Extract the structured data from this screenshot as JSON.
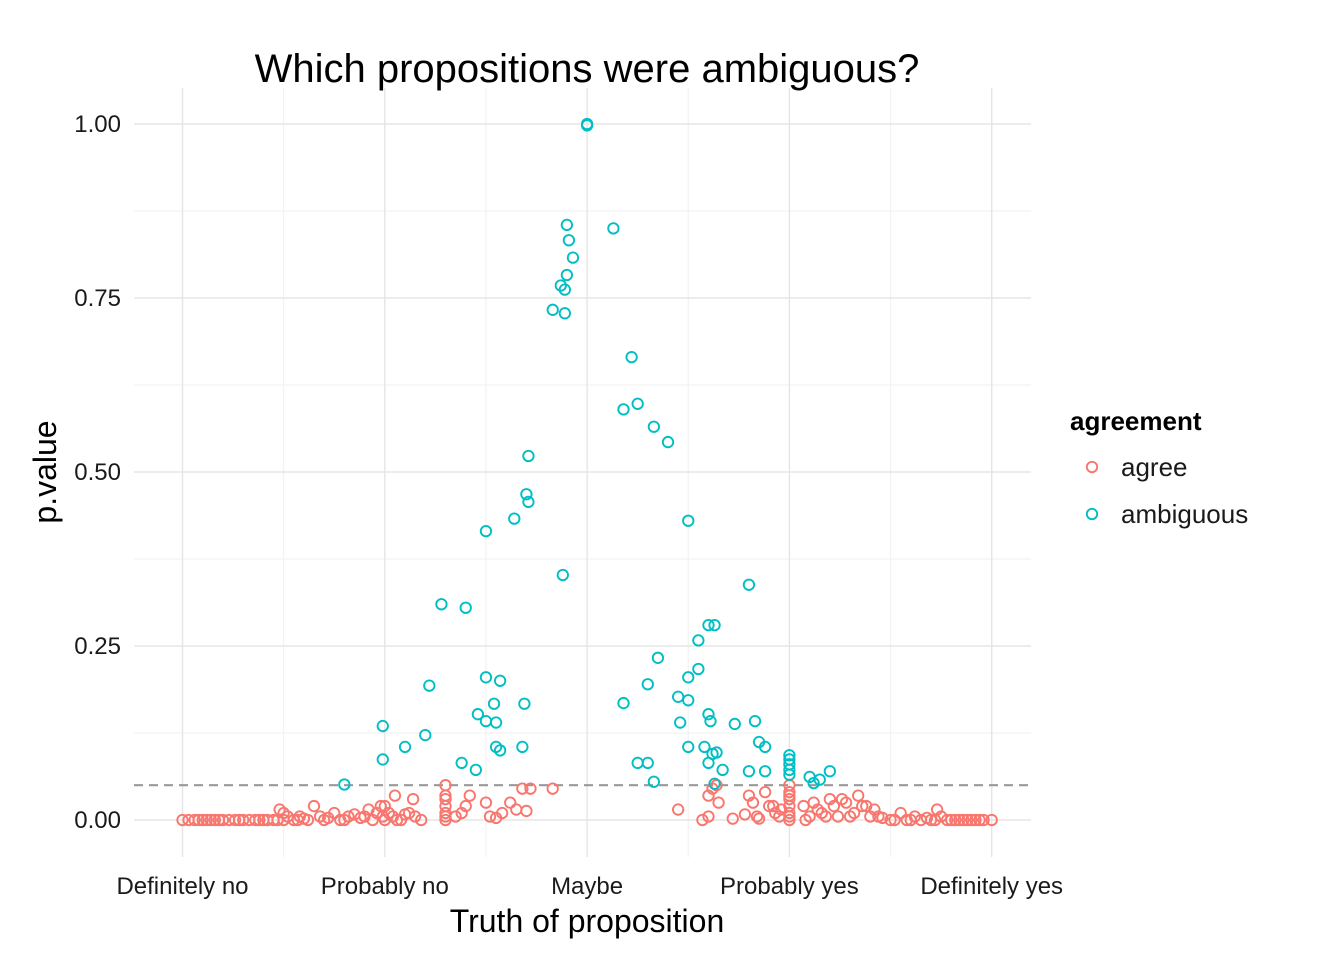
{
  "chart_data": {
    "type": "scatter",
    "title": "Which propositions were ambiguous?",
    "xlabel": "Truth of proposition",
    "ylabel": "p.value",
    "categories": [
      "Definitely no",
      "Probably no",
      "Maybe",
      "Probably yes",
      "Definitely yes"
    ],
    "xlim": [
      0.9,
      5.2
    ],
    "ylim": [
      -0.06,
      1.05
    ],
    "y_ticks": [
      0,
      0.25,
      0.5,
      0.75,
      1.0
    ],
    "y_tick_labels": [
      "0.00",
      "0.25",
      "0.50",
      "0.75",
      "1.00"
    ],
    "reference_line": {
      "y": 0.05,
      "style": "dashed"
    },
    "grid": true,
    "legend": {
      "title": "agreement",
      "placement": "right"
    },
    "series": [
      {
        "name": "agree",
        "color": "#F8766D",
        "points": [
          [
            1.0,
            0
          ],
          [
            1.03,
            0
          ],
          [
            1.06,
            0
          ],
          [
            1.08,
            0
          ],
          [
            1.1,
            0
          ],
          [
            1.12,
            0
          ],
          [
            1.14,
            0
          ],
          [
            1.16,
            0
          ],
          [
            1.18,
            0
          ],
          [
            1.2,
            0
          ],
          [
            1.23,
            0
          ],
          [
            1.26,
            0
          ],
          [
            1.28,
            0
          ],
          [
            1.3,
            0
          ],
          [
            1.33,
            0
          ],
          [
            1.36,
            0
          ],
          [
            1.38,
            0
          ],
          [
            1.4,
            0
          ],
          [
            1.42,
            0
          ],
          [
            1.45,
            0
          ],
          [
            1.48,
            0.015
          ],
          [
            1.5,
            0.01
          ],
          [
            1.52,
            0.005
          ],
          [
            1.55,
            0
          ],
          [
            1.57,
            0
          ],
          [
            1.6,
            0.002
          ],
          [
            1.62,
            0
          ],
          [
            1.5,
            0
          ],
          [
            1.47,
            0
          ],
          [
            1.58,
            0.005
          ],
          [
            1.65,
            0.02
          ],
          [
            1.68,
            0.005
          ],
          [
            1.7,
            0
          ],
          [
            1.72,
            0.003
          ],
          [
            1.75,
            0.01
          ],
          [
            1.78,
            0
          ],
          [
            1.8,
            0
          ],
          [
            1.82,
            0.005
          ],
          [
            1.85,
            0.008
          ],
          [
            1.88,
            0.003
          ],
          [
            1.9,
            0.005
          ],
          [
            1.92,
            0.015
          ],
          [
            1.94,
            0
          ],
          [
            1.96,
            0.01
          ],
          [
            1.98,
            0.02
          ],
          [
            1.99,
            0.005
          ],
          [
            2.0,
            0
          ],
          [
            2.02,
            0.01
          ],
          [
            2.04,
            0.005
          ],
          [
            2.06,
            0
          ],
          [
            2.08,
            0
          ],
          [
            2.1,
            0.008
          ],
          [
            2.12,
            0.01
          ],
          [
            2.14,
            0.03
          ],
          [
            2.15,
            0.005
          ],
          [
            2.18,
            0
          ],
          [
            2.05,
            0.035
          ],
          [
            2.0,
            0.02
          ],
          [
            2.3,
            0.035
          ],
          [
            2.3,
            0.02
          ],
          [
            2.3,
            0.03
          ],
          [
            2.3,
            0.05
          ],
          [
            2.3,
            0.01
          ],
          [
            2.3,
            0.005
          ],
          [
            2.3,
            0
          ],
          [
            2.35,
            0.005
          ],
          [
            2.38,
            0.01
          ],
          [
            2.4,
            0.02
          ],
          [
            2.42,
            0.035
          ],
          [
            2.5,
            0.025
          ],
          [
            2.52,
            0.005
          ],
          [
            2.55,
            0.003
          ],
          [
            2.58,
            0.01
          ],
          [
            2.62,
            0.025
          ],
          [
            2.65,
            0.015
          ],
          [
            2.68,
            0.045
          ],
          [
            2.7,
            0.013
          ],
          [
            2.72,
            0.045
          ],
          [
            2.83,
            0.045
          ],
          [
            3.45,
            0.015
          ],
          [
            3.57,
            0
          ],
          [
            3.6,
            0.005
          ],
          [
            3.6,
            0.035
          ],
          [
            3.62,
            0.045
          ],
          [
            3.64,
            0.05
          ],
          [
            3.65,
            0.025
          ],
          [
            3.78,
            0.008
          ],
          [
            3.8,
            0.035
          ],
          [
            3.82,
            0.025
          ],
          [
            3.84,
            0.005
          ],
          [
            3.85,
            0.002
          ],
          [
            3.88,
            0.04
          ],
          [
            3.9,
            0.02
          ],
          [
            3.92,
            0.02
          ],
          [
            3.93,
            0.01
          ],
          [
            3.95,
            0.005
          ],
          [
            3.96,
            0.015
          ],
          [
            3.72,
            0.002
          ],
          [
            4.0,
            0.05
          ],
          [
            4.0,
            0.04
          ],
          [
            4.0,
            0.03
          ],
          [
            4.0,
            0.02
          ],
          [
            4.0,
            0.01
          ],
          [
            4.0,
            0.005
          ],
          [
            4.0,
            0
          ],
          [
            4.0,
            0.035
          ],
          [
            4.07,
            0.02
          ],
          [
            4.08,
            0
          ],
          [
            4.1,
            0.005
          ],
          [
            4.12,
            0.025
          ],
          [
            4.14,
            0.015
          ],
          [
            4.16,
            0.01
          ],
          [
            4.18,
            0.005
          ],
          [
            4.2,
            0.03
          ],
          [
            4.22,
            0.02
          ],
          [
            4.24,
            0.005
          ],
          [
            4.26,
            0.03
          ],
          [
            4.28,
            0.025
          ],
          [
            4.3,
            0.005
          ],
          [
            4.32,
            0.01
          ],
          [
            4.34,
            0.035
          ],
          [
            4.36,
            0.02
          ],
          [
            4.38,
            0.02
          ],
          [
            4.4,
            0.005
          ],
          [
            4.42,
            0.015
          ],
          [
            4.44,
            0.005
          ],
          [
            4.46,
            0.003
          ],
          [
            4.5,
            0
          ],
          [
            4.52,
            0
          ],
          [
            4.55,
            0.01
          ],
          [
            4.58,
            0
          ],
          [
            4.6,
            0
          ],
          [
            4.62,
            0.005
          ],
          [
            4.65,
            0
          ],
          [
            4.68,
            0.003
          ],
          [
            4.7,
            0
          ],
          [
            4.72,
            0
          ],
          [
            4.73,
            0.015
          ],
          [
            4.75,
            0.005
          ],
          [
            4.78,
            0
          ],
          [
            4.8,
            0
          ],
          [
            4.82,
            0
          ],
          [
            4.84,
            0
          ],
          [
            4.86,
            0
          ],
          [
            4.88,
            0
          ],
          [
            4.9,
            0
          ],
          [
            4.92,
            0
          ],
          [
            4.94,
            0
          ],
          [
            4.96,
            0
          ],
          [
            5.0,
            0
          ]
        ]
      },
      {
        "name": "ambiguous",
        "color": "#00BFC4",
        "points": [
          [
            3.0,
            1.0
          ],
          [
            3.0,
            0.998
          ],
          [
            2.9,
            0.855
          ],
          [
            2.91,
            0.833
          ],
          [
            2.93,
            0.808
          ],
          [
            2.9,
            0.783
          ],
          [
            2.87,
            0.768
          ],
          [
            2.89,
            0.762
          ],
          [
            2.83,
            0.733
          ],
          [
            2.89,
            0.728
          ],
          [
            3.13,
            0.85
          ],
          [
            3.22,
            0.665
          ],
          [
            3.25,
            0.598
          ],
          [
            3.18,
            0.59
          ],
          [
            3.33,
            0.565
          ],
          [
            3.4,
            0.543
          ],
          [
            3.5,
            0.43
          ],
          [
            2.71,
            0.523
          ],
          [
            2.7,
            0.468
          ],
          [
            2.71,
            0.457
          ],
          [
            2.64,
            0.433
          ],
          [
            2.5,
            0.415
          ],
          [
            2.88,
            0.352
          ],
          [
            3.8,
            0.338
          ],
          [
            2.28,
            0.31
          ],
          [
            2.4,
            0.305
          ],
          [
            3.6,
            0.28
          ],
          [
            3.63,
            0.28
          ],
          [
            3.55,
            0.258
          ],
          [
            3.35,
            0.233
          ],
          [
            3.55,
            0.217
          ],
          [
            3.5,
            0.205
          ],
          [
            2.5,
            0.205
          ],
          [
            2.57,
            0.2
          ],
          [
            2.22,
            0.193
          ],
          [
            3.3,
            0.195
          ],
          [
            3.45,
            0.177
          ],
          [
            3.5,
            0.172
          ],
          [
            2.54,
            0.167
          ],
          [
            2.69,
            0.167
          ],
          [
            3.18,
            0.168
          ],
          [
            2.46,
            0.152
          ],
          [
            2.5,
            0.142
          ],
          [
            2.55,
            0.14
          ],
          [
            3.6,
            0.152
          ],
          [
            3.61,
            0.142
          ],
          [
            3.46,
            0.14
          ],
          [
            1.99,
            0.135
          ],
          [
            3.73,
            0.138
          ],
          [
            3.83,
            0.142
          ],
          [
            2.2,
            0.122
          ],
          [
            3.85,
            0.112
          ],
          [
            3.88,
            0.105
          ],
          [
            2.55,
            0.105
          ],
          [
            2.57,
            0.1
          ],
          [
            2.68,
            0.105
          ],
          [
            3.5,
            0.105
          ],
          [
            3.58,
            0.105
          ],
          [
            3.62,
            0.095
          ],
          [
            3.64,
            0.097
          ],
          [
            2.1,
            0.105
          ],
          [
            1.99,
            0.087
          ],
          [
            2.38,
            0.082
          ],
          [
            3.25,
            0.082
          ],
          [
            3.3,
            0.082
          ],
          [
            3.6,
            0.082
          ],
          [
            3.67,
            0.072
          ],
          [
            3.8,
            0.07
          ],
          [
            3.88,
            0.07
          ],
          [
            2.45,
            0.072
          ],
          [
            4.0,
            0.093
          ],
          [
            4.0,
            0.087
          ],
          [
            4.0,
            0.08
          ],
          [
            4.0,
            0.072
          ],
          [
            4.0,
            0.065
          ],
          [
            4.1,
            0.062
          ],
          [
            4.15,
            0.058
          ],
          [
            4.2,
            0.07
          ],
          [
            4.12,
            0.053
          ],
          [
            3.33,
            0.055
          ],
          [
            3.63,
            0.052
          ],
          [
            1.8,
            0.051
          ]
        ]
      }
    ]
  }
}
